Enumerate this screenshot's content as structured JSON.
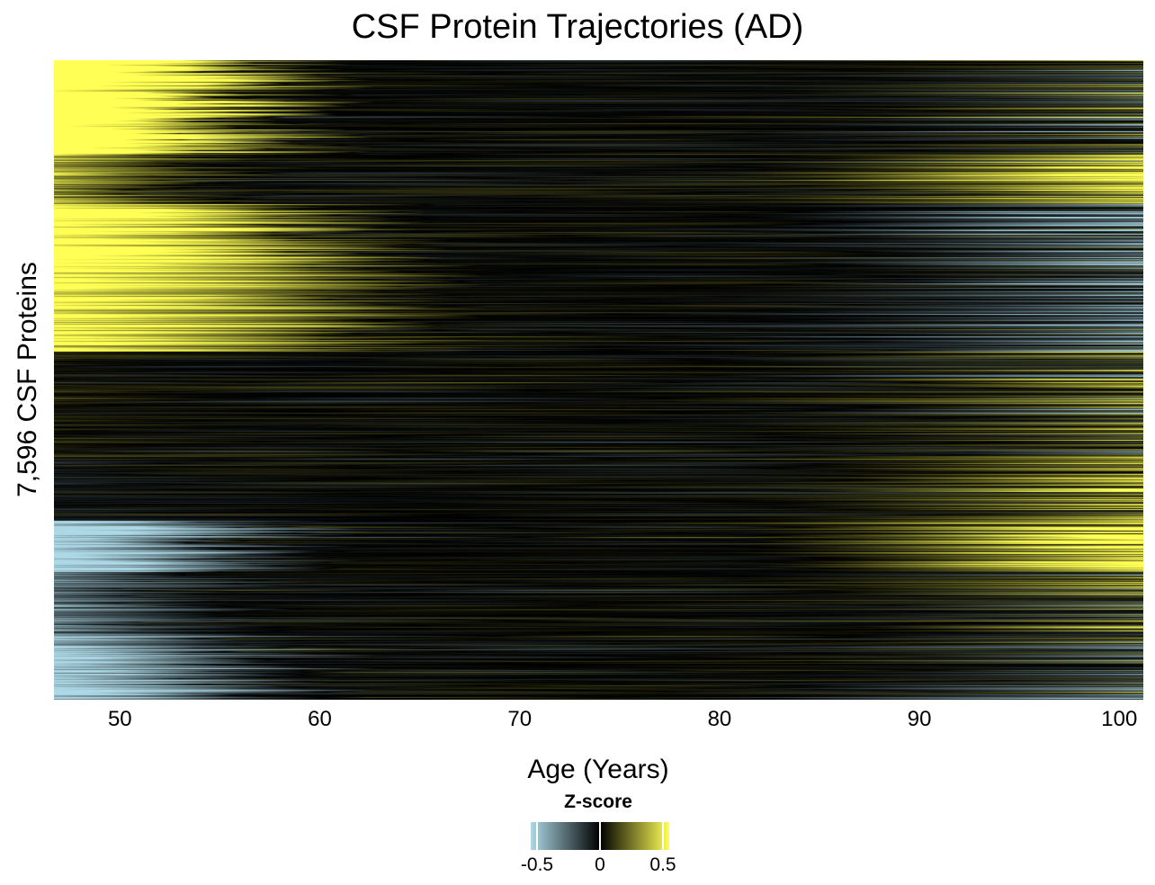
{
  "chart_data": {
    "type": "heatmap",
    "title": "CSF Protein Trajectories (AD)",
    "xlabel": "Age (Years)",
    "ylabel": "7,596 CSF Proteins",
    "xlim": [
      46.7,
      101.2
    ],
    "x_ticks": [
      {
        "value": 50,
        "label": "50"
      },
      {
        "value": 60,
        "label": "60"
      },
      {
        "value": 70,
        "label": "70"
      },
      {
        "value": 80,
        "label": "80"
      },
      {
        "value": 90,
        "label": "90"
      },
      {
        "value": 100,
        "label": "100"
      }
    ],
    "n_rows": 7596,
    "colorscale": {
      "title": "Z-score",
      "low_color": "#add8e6",
      "mid_color": "#000000",
      "high_color": "#ffff55",
      "range": [
        -0.55,
        0.55
      ],
      "ticks": [
        {
          "value": -0.5,
          "label": "-0.5"
        },
        {
          "value": 0,
          "label": "0"
        },
        {
          "value": 0.5,
          "label": "0.5"
        }
      ]
    },
    "clusters": [
      {
        "start": 0.0,
        "end": 0.147,
        "z_start": 1.0,
        "fade_age": 58,
        "z_end": 0.0
      },
      {
        "start": 0.147,
        "end": 0.225,
        "z_start": 0.35,
        "fade_age": 55,
        "z_end": 0.5
      },
      {
        "start": 0.225,
        "end": 0.32,
        "z_start": 0.8,
        "fade_age": 62,
        "z_end": -0.3
      },
      {
        "start": 0.32,
        "end": 0.455,
        "z_start": 0.65,
        "fade_age": 64,
        "z_end": -0.25
      },
      {
        "start": 0.455,
        "end": 0.62,
        "z_start": 0.05,
        "fade_age": 55,
        "z_end": 0.1
      },
      {
        "start": 0.62,
        "end": 0.72,
        "z_start": -0.05,
        "fade_age": 55,
        "z_end": 0.3
      },
      {
        "start": 0.72,
        "end": 0.8,
        "z_start": -0.65,
        "fade_age": 58,
        "z_end": 0.6
      },
      {
        "start": 0.8,
        "end": 0.9,
        "z_start": -0.3,
        "fade_age": 55,
        "z_end": 0.15
      },
      {
        "start": 0.9,
        "end": 1.0,
        "z_start": -0.55,
        "fade_age": 58,
        "z_end": -0.1
      }
    ]
  }
}
